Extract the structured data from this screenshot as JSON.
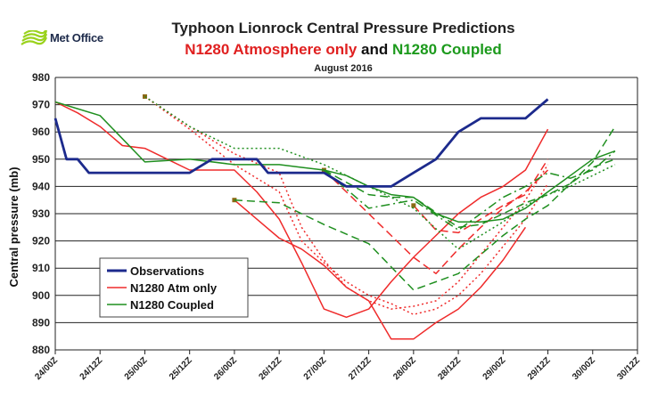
{
  "brand": {
    "logo_text": "Met Office",
    "logo_color": "#9ad21c"
  },
  "title_line1": "Typhoon Lionrock Central Pressure Predictions",
  "title_line2": {
    "part1": "N1280 Atmosphere only",
    "part2": " and ",
    "part3": "N1280 Coupled"
  },
  "date_label": "August 2016",
  "colors": {
    "observations": "#1c2a8c",
    "atm": "#ef2b2b",
    "coupled": "#1f8f1f",
    "marker": "#8b6914"
  },
  "chart_data": {
    "type": "line",
    "title": "Typhoon Lionrock Central Pressure Predictions",
    "ylabel": "Central pressure (mb)",
    "xlabel": "",
    "ylim": [
      880,
      980
    ],
    "yticks": [
      880,
      890,
      900,
      910,
      920,
      930,
      940,
      950,
      960,
      970,
      980
    ],
    "grid": true,
    "legend_position": "bottom-left",
    "x_tick_labels": [
      "24/00Z",
      "24/12Z",
      "25/00Z",
      "25/12Z",
      "26/00Z",
      "26/12Z",
      "27/00Z",
      "27/12Z",
      "28/00Z",
      "28/12Z",
      "29/00Z",
      "29/12Z",
      "30/00Z",
      "30/12Z"
    ],
    "x_unit": "hours since 24/00Z",
    "legend": [
      "Observations",
      "N1280 Atm only",
      "N1280 Coupled"
    ],
    "series": [
      {
        "name": "Observations",
        "group": "observations",
        "style": "solid",
        "points": [
          [
            0,
            965
          ],
          [
            3,
            950
          ],
          [
            6,
            950
          ],
          [
            9,
            945
          ],
          [
            12,
            945
          ],
          [
            18,
            945
          ],
          [
            24,
            945
          ],
          [
            30,
            945
          ],
          [
            36,
            945
          ],
          [
            42,
            950
          ],
          [
            48,
            950
          ],
          [
            54,
            950
          ],
          [
            57,
            945
          ],
          [
            60,
            945
          ],
          [
            66,
            945
          ],
          [
            72,
            945
          ],
          [
            78,
            940
          ],
          [
            84,
            940
          ],
          [
            90,
            940
          ],
          [
            96,
            945
          ],
          [
            102,
            950
          ],
          [
            108,
            960
          ],
          [
            114,
            965
          ],
          [
            120,
            965
          ],
          [
            126,
            965
          ],
          [
            132,
            972
          ]
        ]
      },
      {
        "group": "atm",
        "style": "solid",
        "points": [
          [
            0,
            971
          ],
          [
            6,
            967
          ],
          [
            12,
            962
          ],
          [
            18,
            955
          ],
          [
            24,
            954
          ],
          [
            30,
            950
          ],
          [
            36,
            946
          ],
          [
            42,
            946
          ],
          [
            48,
            946
          ],
          [
            54,
            938
          ],
          [
            60,
            928
          ],
          [
            66,
            912
          ],
          [
            72,
            895
          ],
          [
            78,
            892
          ],
          [
            84,
            895
          ],
          [
            90,
            905
          ],
          [
            96,
            914
          ],
          [
            102,
            922
          ],
          [
            108,
            930
          ],
          [
            114,
            936
          ],
          [
            120,
            940
          ],
          [
            126,
            946
          ],
          [
            132,
            961
          ]
        ]
      },
      {
        "group": "atm",
        "style": "solid",
        "marker": true,
        "points": [
          [
            48,
            935
          ],
          [
            54,
            928
          ],
          [
            60,
            921
          ],
          [
            66,
            917
          ],
          [
            72,
            911
          ],
          [
            78,
            903
          ],
          [
            84,
            898
          ],
          [
            90,
            884
          ],
          [
            96,
            884
          ],
          [
            102,
            890
          ],
          [
            108,
            895
          ],
          [
            114,
            903
          ],
          [
            120,
            913
          ],
          [
            126,
            925
          ]
        ]
      },
      {
        "group": "atm",
        "style": "dash",
        "marker": true,
        "points": [
          [
            72,
            946
          ],
          [
            78,
            938
          ],
          [
            84,
            930
          ],
          [
            90,
            922
          ],
          [
            96,
            914
          ],
          [
            102,
            908
          ],
          [
            108,
            917
          ],
          [
            114,
            925
          ],
          [
            120,
            932
          ],
          [
            126,
            938
          ],
          [
            132,
            946
          ]
        ]
      },
      {
        "group": "atm",
        "style": "dash",
        "marker": true,
        "points": [
          [
            96,
            933
          ],
          [
            102,
            924
          ],
          [
            108,
            923
          ],
          [
            114,
            928
          ],
          [
            120,
            933
          ],
          [
            126,
            937
          ],
          [
            132,
            950
          ]
        ]
      },
      {
        "group": "atm",
        "style": "dot",
        "marker": true,
        "points": [
          [
            24,
            973
          ],
          [
            36,
            961
          ],
          [
            48,
            948
          ],
          [
            60,
            938
          ],
          [
            66,
            920
          ],
          [
            72,
            912
          ],
          [
            78,
            905
          ],
          [
            84,
            900
          ],
          [
            90,
            897
          ],
          [
            96,
            893
          ],
          [
            102,
            895
          ],
          [
            108,
            900
          ],
          [
            114,
            908
          ],
          [
            120,
            918
          ],
          [
            126,
            928
          ],
          [
            132,
            941
          ]
        ]
      },
      {
        "group": "atm",
        "style": "dot",
        "points": [
          [
            24,
            973
          ],
          [
            36,
            962
          ],
          [
            48,
            952
          ],
          [
            60,
            945
          ],
          [
            66,
            925
          ],
          [
            72,
            913
          ],
          [
            78,
            903
          ],
          [
            84,
            898
          ],
          [
            90,
            895
          ],
          [
            96,
            896
          ],
          [
            102,
            898
          ],
          [
            108,
            905
          ],
          [
            114,
            915
          ],
          [
            120,
            925
          ],
          [
            126,
            935
          ],
          [
            132,
            948
          ]
        ]
      },
      {
        "group": "coupled",
        "style": "solid",
        "points": [
          [
            0,
            971
          ],
          [
            12,
            966
          ],
          [
            24,
            949
          ],
          [
            36,
            950
          ],
          [
            48,
            948
          ],
          [
            54,
            948
          ],
          [
            60,
            948
          ],
          [
            66,
            947
          ],
          [
            72,
            946
          ],
          [
            78,
            944
          ],
          [
            84,
            940
          ],
          [
            90,
            937
          ],
          [
            96,
            936
          ],
          [
            102,
            930
          ],
          [
            108,
            927
          ],
          [
            114,
            927
          ],
          [
            120,
            928
          ],
          [
            126,
            932
          ],
          [
            132,
            938
          ],
          [
            138,
            944
          ],
          [
            144,
            950
          ],
          [
            150,
            953
          ]
        ]
      },
      {
        "group": "coupled",
        "style": "dash",
        "points": [
          [
            48,
            935
          ],
          [
            60,
            934
          ],
          [
            72,
            926
          ],
          [
            84,
            919
          ],
          [
            96,
            902
          ],
          [
            108,
            908
          ],
          [
            114,
            915
          ],
          [
            120,
            922
          ],
          [
            126,
            928
          ],
          [
            132,
            933
          ],
          [
            138,
            941
          ],
          [
            144,
            949
          ],
          [
            150,
            962
          ]
        ]
      },
      {
        "group": "coupled",
        "style": "dash",
        "points": [
          [
            72,
            946
          ],
          [
            84,
            937
          ],
          [
            90,
            936
          ],
          [
            96,
            936
          ],
          [
            108,
            925
          ],
          [
            114,
            926
          ],
          [
            120,
            930
          ],
          [
            126,
            934
          ],
          [
            132,
            937
          ],
          [
            138,
            941
          ],
          [
            144,
            947
          ],
          [
            150,
            950
          ]
        ]
      },
      {
        "group": "coupled",
        "style": "dashdot",
        "points": [
          [
            72,
            946
          ],
          [
            84,
            932
          ],
          [
            96,
            935
          ],
          [
            108,
            924
          ],
          [
            114,
            930
          ],
          [
            120,
            936
          ],
          [
            126,
            940
          ],
          [
            132,
            945
          ],
          [
            138,
            943
          ],
          [
            144,
            946
          ],
          [
            150,
            953
          ]
        ]
      },
      {
        "group": "coupled",
        "style": "dot",
        "points": [
          [
            24,
            973
          ],
          [
            36,
            962
          ],
          [
            48,
            954
          ],
          [
            60,
            954
          ],
          [
            72,
            948
          ],
          [
            84,
            940
          ],
          [
            96,
            932
          ],
          [
            108,
            917
          ],
          [
            114,
            922
          ],
          [
            120,
            927
          ],
          [
            126,
            933
          ],
          [
            132,
            937
          ],
          [
            138,
            940
          ],
          [
            144,
            944
          ],
          [
            150,
            948
          ]
        ]
      }
    ]
  }
}
